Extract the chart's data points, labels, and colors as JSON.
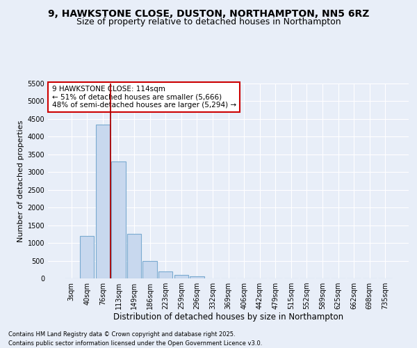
{
  "title_line1": "9, HAWKSTONE CLOSE, DUSTON, NORTHAMPTON, NN5 6RZ",
  "title_line2": "Size of property relative to detached houses in Northampton",
  "xlabel": "Distribution of detached houses by size in Northampton",
  "ylabel": "Number of detached properties",
  "footer_line1": "Contains HM Land Registry data © Crown copyright and database right 2025.",
  "footer_line2": "Contains public sector information licensed under the Open Government Licence v3.0.",
  "annotation_title": "9 HAWKSTONE CLOSE: 114sqm",
  "annotation_line1": "← 51% of detached houses are smaller (5,666)",
  "annotation_line2": "48% of semi-detached houses are larger (5,294) →",
  "bar_categories": [
    "3sqm",
    "40sqm",
    "76sqm",
    "113sqm",
    "149sqm",
    "186sqm",
    "223sqm",
    "259sqm",
    "296sqm",
    "332sqm",
    "369sqm",
    "406sqm",
    "442sqm",
    "479sqm",
    "515sqm",
    "552sqm",
    "589sqm",
    "625sqm",
    "662sqm",
    "698sqm",
    "735sqm"
  ],
  "bar_values": [
    0,
    1200,
    4350,
    3300,
    1250,
    500,
    200,
    100,
    60,
    0,
    0,
    0,
    0,
    0,
    0,
    0,
    0,
    0,
    0,
    0,
    0
  ],
  "bar_color": "#c8d8ee",
  "bar_edge_color": "#7aaad0",
  "vline_color": "#aa0000",
  "annotation_box_color": "#cc0000",
  "ylim_max": 5500,
  "yticks": [
    0,
    500,
    1000,
    1500,
    2000,
    2500,
    3000,
    3500,
    4000,
    4500,
    5000,
    5500
  ],
  "background_color": "#e8eef8",
  "grid_color": "#ffffff",
  "title_fontsize": 10,
  "subtitle_fontsize": 9,
  "ylabel_fontsize": 8,
  "xlabel_fontsize": 8.5,
  "tick_fontsize": 7,
  "annotation_fontsize": 7.5,
  "footer_fontsize": 6
}
